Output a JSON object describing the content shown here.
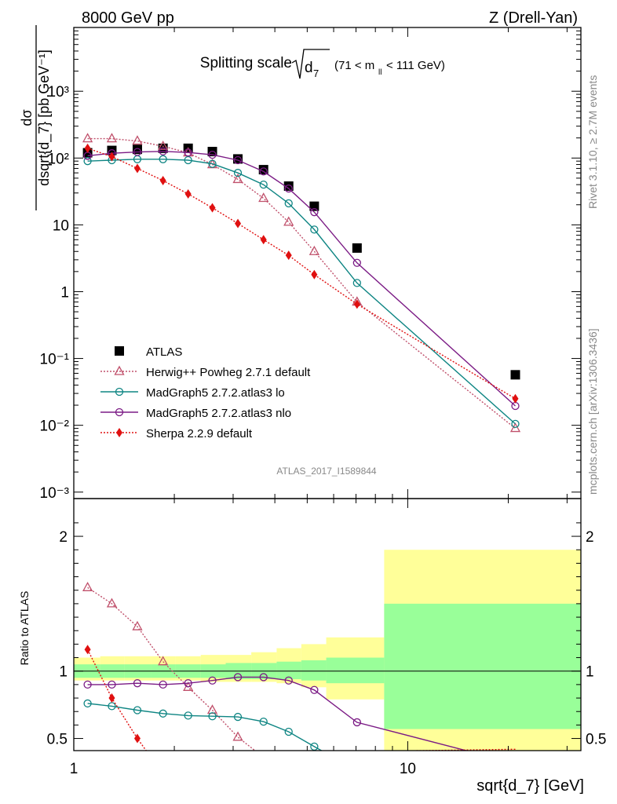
{
  "header": {
    "left": "8000 GeV pp",
    "right": "Z (Drell-Yan)"
  },
  "side": {
    "top": "Rivet 3.1.10, ≥ 2.7M events",
    "bottom": "mcplots.cern.ch [arXiv:1306.3436]"
  },
  "watermark": "ATLAS_2017_I1589844",
  "colors": {
    "ATLAS": "#000000",
    "Herwig": "#c0506b",
    "MG_lo": "#0e8583",
    "MG_nlo": "#7b1b85",
    "Sherpa": "#e01010",
    "band_inner": "#99ff99",
    "band_outer": "#ffff99"
  },
  "chart_data": [
    {
      "type": "line",
      "panel": "main",
      "title": "Splitting scale",
      "title_math": "√d7",
      "title_range": "(71 < m_ll < 111 GeV)",
      "xlabel": "sqrt{d_7} [GeV]",
      "ylabel": "dσ/dsqrt{d_7} [pb,GeV⁻¹]",
      "xscale": "log",
      "yscale": "log",
      "xlim": [
        1,
        33
      ],
      "ylim": [
        0.0008,
        9000
      ],
      "ytick_labels": [
        "10⁻³",
        "10⁻²",
        "10⁻¹",
        "1",
        "10",
        "10²",
        "10³"
      ],
      "legend_position": "lower-left",
      "series": [
        {
          "name": "ATLAS",
          "marker": "square",
          "x": [
            1.1,
            1.3,
            1.55,
            1.85,
            2.2,
            2.6,
            3.1,
            3.7,
            4.4,
            5.25,
            7.05,
            21.0
          ],
          "y": [
            120,
            130,
            135,
            140,
            140,
            125,
            97,
            67,
            38,
            19,
            4.5,
            0.057
          ]
        },
        {
          "name": "Herwig++ Powheg 2.7.1 default",
          "marker": "open-triangle",
          "style": "dotted",
          "x": [
            1.1,
            1.3,
            1.55,
            1.85,
            2.2,
            2.6,
            3.1,
            3.7,
            4.4,
            5.25,
            7.05,
            21.0
          ],
          "y": [
            195,
            195,
            180,
            150,
            120,
            80,
            48,
            25,
            11,
            4,
            0.7,
            0.009
          ]
        },
        {
          "name": "MadGraph5 2.7.2.atlas3 lo",
          "marker": "open-circle",
          "style": "solid",
          "x": [
            1.1,
            1.3,
            1.55,
            1.85,
            2.2,
            2.6,
            3.1,
            3.7,
            4.4,
            5.25,
            7.05,
            21.0
          ],
          "y": [
            90,
            93,
            96,
            96,
            93,
            82,
            60,
            40,
            21,
            8.5,
            1.35,
            0.0105
          ]
        },
        {
          "name": "MadGraph5 2.7.2.atlas3 nlo",
          "marker": "open-circle",
          "style": "solid",
          "x": [
            1.1,
            1.3,
            1.55,
            1.85,
            2.2,
            2.6,
            3.1,
            3.7,
            4.4,
            5.25,
            7.05,
            21.0
          ],
          "y": [
            108,
            118,
            123,
            126,
            121,
            112,
            93,
            63,
            35,
            15.5,
            2.7,
            0.0195
          ]
        },
        {
          "name": "Sherpa 2.2.9 default",
          "marker": "diamond",
          "style": "dotted",
          "x": [
            1.1,
            1.3,
            1.55,
            1.85,
            2.2,
            2.6,
            3.1,
            3.7,
            4.4,
            5.25,
            7.05,
            21.0
          ],
          "y": [
            140,
            105,
            70,
            46,
            29,
            18,
            10.5,
            6,
            3.5,
            1.8,
            0.65,
            0.025
          ]
        }
      ]
    },
    {
      "type": "line",
      "panel": "ratio",
      "ylabel": "Ratio to ATLAS",
      "xscale": "log",
      "xlim": [
        1,
        33
      ],
      "ylim": [
        0.41,
        2.28
      ],
      "ytick_labels": [
        "0.5",
        "1",
        "2"
      ],
      "xtick_labels": [
        "1",
        "10"
      ],
      "bands": {
        "edges": [
          1.0,
          1.2,
          1.42,
          1.7,
          2.02,
          2.4,
          2.85,
          3.4,
          4.05,
          4.8,
          5.7,
          8.5,
          33.0
        ],
        "inner": [
          [
            0.95,
            1.05
          ],
          [
            0.95,
            1.05
          ],
          [
            0.95,
            1.05
          ],
          [
            0.95,
            1.05
          ],
          [
            0.95,
            1.05
          ],
          [
            0.95,
            1.05
          ],
          [
            0.94,
            1.06
          ],
          [
            0.94,
            1.06
          ],
          [
            0.94,
            1.07
          ],
          [
            0.93,
            1.08
          ],
          [
            0.91,
            1.1
          ],
          [
            0.57,
            1.5
          ]
        ],
        "outer": [
          [
            0.93,
            1.1
          ],
          [
            0.93,
            1.11
          ],
          [
            0.93,
            1.11
          ],
          [
            0.93,
            1.11
          ],
          [
            0.93,
            1.11
          ],
          [
            0.92,
            1.12
          ],
          [
            0.92,
            1.12
          ],
          [
            0.92,
            1.14
          ],
          [
            0.91,
            1.17
          ],
          [
            0.88,
            1.2
          ],
          [
            0.79,
            1.25
          ],
          [
            0.3,
            1.9
          ]
        ]
      },
      "series": [
        {
          "name": "Herwig++ Powheg 2.7.1 default",
          "x": [
            1.1,
            1.3,
            1.55,
            1.85,
            2.2,
            2.6,
            3.1,
            3.7
          ],
          "y": [
            1.62,
            1.5,
            1.33,
            1.07,
            0.88,
            0.71,
            0.51,
            0.36
          ]
        },
        {
          "name": "MadGraph5 2.7.2.atlas3 lo",
          "x": [
            1.1,
            1.3,
            1.55,
            1.85,
            2.2,
            2.6,
            3.1,
            3.7,
            4.4,
            5.25,
            6.0
          ],
          "y": [
            0.76,
            0.74,
            0.71,
            0.685,
            0.67,
            0.665,
            0.66,
            0.625,
            0.55,
            0.44,
            0.36
          ]
        },
        {
          "name": "MadGraph5 2.7.2.atlas3 nlo",
          "x": [
            1.1,
            1.3,
            1.55,
            1.85,
            2.2,
            2.6,
            3.1,
            3.7,
            4.4,
            5.25,
            7.05,
            15.5
          ],
          "y": [
            0.9,
            0.9,
            0.91,
            0.9,
            0.91,
            0.93,
            0.955,
            0.955,
            0.93,
            0.86,
            0.62,
            0.4
          ]
        },
        {
          "name": "Sherpa 2.2.9 default",
          "x": [
            1.1,
            1.3,
            1.55,
            1.68,
            21.0
          ],
          "y": [
            1.16,
            0.8,
            0.5,
            0.38,
            0.42
          ]
        }
      ]
    }
  ]
}
